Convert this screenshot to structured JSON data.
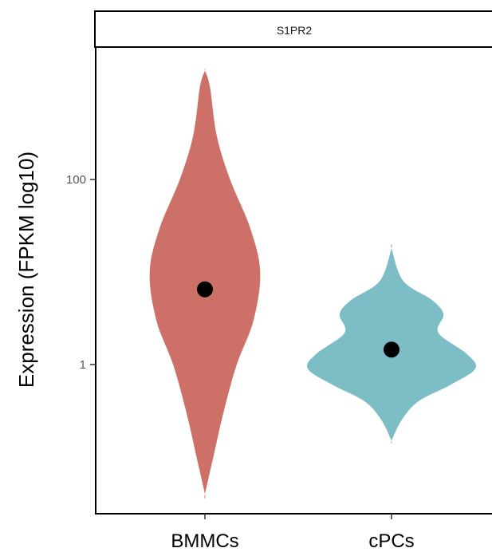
{
  "chart_data": {
    "type": "violin",
    "facet_title": "S1PR2",
    "ylabel": "Expression (FPKM log10)",
    "xlabel": "",
    "y_scale": "log10",
    "ylim": [
      0.03,
      2000
    ],
    "y_ticks": [
      {
        "value": 1,
        "label": "1"
      },
      {
        "value": 100,
        "label": "100"
      }
    ],
    "categories": [
      "BMMCs",
      "cPCs"
    ],
    "series": [
      {
        "category": "BMMCs",
        "color": "#CC7068",
        "point_value": 6.5,
        "range": [
          0.04,
          1500
        ],
        "density_profile": [
          {
            "value": 0.04,
            "half_width": 0.0
          },
          {
            "value": 0.1,
            "half_width": 0.05
          },
          {
            "value": 0.3,
            "half_width": 0.11
          },
          {
            "value": 1,
            "half_width": 0.19
          },
          {
            "value": 3,
            "half_width": 0.29
          },
          {
            "value": 10,
            "half_width": 0.33
          },
          {
            "value": 30,
            "half_width": 0.27
          },
          {
            "value": 100,
            "half_width": 0.15
          },
          {
            "value": 300,
            "half_width": 0.07
          },
          {
            "value": 1000,
            "half_width": 0.03
          },
          {
            "value": 1500,
            "half_width": 0.0
          }
        ]
      },
      {
        "category": "cPCs",
        "color": "#7DBDC6",
        "point_value": 1.45,
        "range": [
          0.15,
          18
        ],
        "density_profile": [
          {
            "value": 0.15,
            "half_width": 0.0
          },
          {
            "value": 0.25,
            "half_width": 0.06
          },
          {
            "value": 0.4,
            "half_width": 0.16
          },
          {
            "value": 0.6,
            "half_width": 0.35
          },
          {
            "value": 0.9,
            "half_width": 0.5
          },
          {
            "value": 1.3,
            "half_width": 0.45
          },
          {
            "value": 2.2,
            "half_width": 0.28
          },
          {
            "value": 3.5,
            "half_width": 0.31
          },
          {
            "value": 5,
            "half_width": 0.24
          },
          {
            "value": 8,
            "half_width": 0.07
          },
          {
            "value": 18,
            "half_width": 0.0
          }
        ]
      }
    ]
  }
}
